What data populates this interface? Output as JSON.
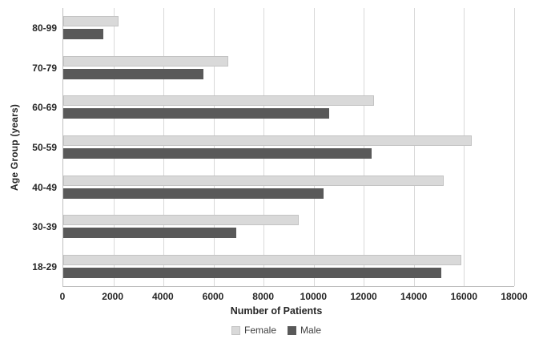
{
  "chart_data": {
    "type": "bar",
    "orientation": "horizontal",
    "title": "",
    "xlabel": "Number of Patients",
    "ylabel": "Age Group (years)",
    "category_order": "top-to-bottom",
    "categories": [
      "80-99",
      "70-79",
      "60-69",
      "50-59",
      "40-49",
      "30-39",
      "18-29"
    ],
    "series": [
      {
        "name": "Female",
        "color": "#d9d9d9",
        "values": [
          2200,
          6600,
          12400,
          16300,
          15200,
          9400,
          15900
        ]
      },
      {
        "name": "Male",
        "color": "#595959",
        "values": [
          1600,
          5600,
          10600,
          12300,
          10400,
          6900,
          15100
        ]
      }
    ],
    "xlim": [
      0,
      18000
    ],
    "xticks": [
      0,
      2000,
      4000,
      6000,
      8000,
      10000,
      12000,
      14000,
      16000,
      18000
    ],
    "grid": true,
    "gridline_color": "#d9d9d9",
    "axis_color": "#bfbfbf",
    "legend_position": "bottom"
  }
}
